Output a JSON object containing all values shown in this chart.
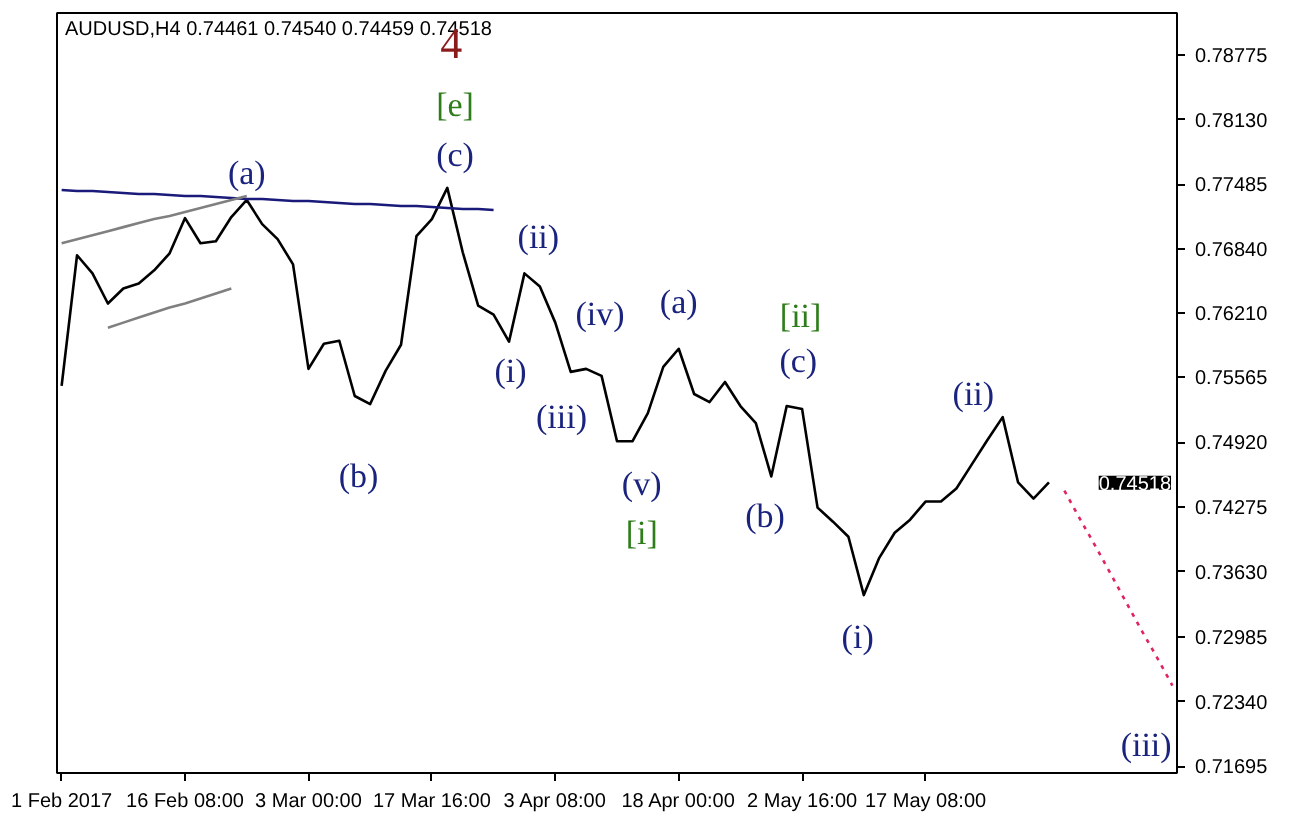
{
  "chart_data": {
    "type": "line",
    "title": "AUDUSD,H4  0.74461 0.74540 0.74459 0.74518",
    "categories": [
      "1 Feb 2017",
      null,
      null,
      null,
      null,
      null,
      null,
      null,
      "16 Feb 08:00",
      null,
      null,
      null,
      null,
      null,
      null,
      null,
      "3 Mar 00:00",
      null,
      null,
      null,
      null,
      null,
      null,
      null,
      "17 Mar 16:00",
      null,
      null,
      null,
      null,
      null,
      null,
      null,
      "3 Apr 08:00",
      null,
      null,
      null,
      null,
      null,
      null,
      null,
      "18 Apr 00:00",
      null,
      null,
      null,
      null,
      null,
      null,
      null,
      "2 May 16:00",
      null,
      null,
      null,
      null,
      null,
      null,
      null,
      "17 May 08:00",
      null,
      null,
      null,
      null,
      null,
      null,
      null,
      null,
      null,
      null,
      null,
      null,
      null,
      null,
      null,
      null
    ],
    "series": [
      {
        "color": "#000000",
        "line_style": "solid",
        "values": [
          0.7548,
          0.7678,
          0.766,
          0.763,
          0.7645,
          0.765,
          0.7663,
          0.768,
          0.7715,
          0.769,
          0.7692,
          0.7716,
          0.7733,
          0.7709,
          0.7694,
          0.7669,
          0.7565,
          0.759,
          0.7593,
          0.7538,
          0.753,
          0.7563,
          0.7589,
          0.7697,
          0.7714,
          0.7745,
          0.7681,
          0.7628,
          0.7619,
          0.7592,
          0.766,
          0.7647,
          0.7611,
          0.7562,
          0.7565,
          0.7558,
          0.7493,
          0.7493,
          0.7521,
          0.7567,
          0.7585,
          0.754,
          0.7532,
          0.7552,
          0.7528,
          0.7511,
          0.7458,
          0.7528,
          0.7525,
          0.7427,
          0.7413,
          0.7398,
          0.734,
          0.7377,
          0.7402,
          0.7415,
          0.7433,
          0.7433,
          0.7446,
          0.747,
          0.7494,
          0.7517,
          0.7452,
          0.7436,
          0.7452,
          null,
          null,
          null,
          null,
          null,
          null,
          null,
          null
        ]
      },
      {
        "color": "#1a1a7a",
        "line_style": "solid",
        "values": [
          0.7743,
          0.7742,
          0.7742,
          0.7741,
          0.774,
          0.7739,
          0.7739,
          0.7738,
          0.7737,
          0.7737,
          0.7736,
          0.7735,
          0.7734,
          0.7734,
          0.7733,
          0.7732,
          0.7732,
          0.7731,
          0.773,
          0.7729,
          0.7729,
          0.7728,
          0.7727,
          0.7727,
          0.7726,
          0.7725,
          0.7724,
          0.7724,
          0.7723,
          null,
          null,
          null,
          null,
          null,
          null,
          null,
          null,
          null,
          null,
          null,
          null,
          null,
          null,
          null,
          null,
          null,
          null,
          null,
          null,
          null,
          null,
          null,
          null,
          null,
          null,
          null,
          null,
          null,
          null,
          null,
          null,
          null,
          null,
          null,
          null,
          null,
          null,
          null,
          null,
          null,
          null,
          null,
          null
        ]
      },
      {
        "color": "#808080",
        "line_style": "solid",
        "values": [
          0.769,
          0.7694,
          0.7698,
          0.7702,
          0.7706,
          0.771,
          0.7714,
          0.7717,
          0.7721,
          0.7725,
          0.7729,
          0.7733,
          0.7737,
          null,
          null,
          null,
          null,
          null,
          null,
          null,
          null,
          null,
          null,
          null,
          null,
          null,
          null,
          null,
          null,
          null,
          null,
          null,
          null,
          null,
          null,
          null,
          null,
          null,
          null,
          null,
          null,
          null,
          null,
          null,
          null,
          null,
          null,
          null,
          null,
          null,
          null,
          null,
          null,
          null,
          null,
          null,
          null,
          null,
          null,
          null,
          null,
          null,
          null,
          null,
          null,
          null,
          null,
          null,
          null,
          null,
          null,
          null,
          null
        ]
      },
      {
        "color": "#808080",
        "line_style": "solid",
        "values": [
          null,
          null,
          null,
          0.7606,
          0.7611,
          0.7616,
          0.7621,
          0.7626,
          0.763,
          0.7635,
          0.764,
          0.7645,
          null,
          null,
          null,
          null,
          null,
          null,
          null,
          null,
          null,
          null,
          null,
          null,
          null,
          null,
          null,
          null,
          null,
          null,
          null,
          null,
          null,
          null,
          null,
          null,
          null,
          null,
          null,
          null,
          null,
          null,
          null,
          null,
          null,
          null,
          null,
          null,
          null,
          null,
          null,
          null,
          null,
          null,
          null,
          null,
          null,
          null,
          null,
          null,
          null,
          null,
          null,
          null,
          null,
          null,
          null,
          null,
          null,
          null,
          null,
          null,
          null
        ]
      },
      {
        "color": "#e0245e",
        "line_style": "dotted",
        "values": [
          null,
          null,
          null,
          null,
          null,
          null,
          null,
          null,
          null,
          null,
          null,
          null,
          null,
          null,
          null,
          null,
          null,
          null,
          null,
          null,
          null,
          null,
          null,
          null,
          null,
          null,
          null,
          null,
          null,
          null,
          null,
          null,
          null,
          null,
          null,
          null,
          null,
          null,
          null,
          null,
          null,
          null,
          null,
          null,
          null,
          null,
          null,
          null,
          null,
          null,
          null,
          null,
          null,
          null,
          null,
          null,
          null,
          null,
          null,
          null,
          null,
          null,
          null,
          null,
          null,
          0.7444,
          0.7416,
          0.7389,
          0.7361,
          0.7333,
          0.7305,
          0.7278,
          0.725
        ]
      }
    ],
    "ylim": [
      0.7163,
      0.7919
    ],
    "yticks": [
      {
        "value": 0.78775,
        "label": "0.78775"
      },
      {
        "value": 0.7813,
        "label": "0.78130"
      },
      {
        "value": 0.77485,
        "label": "0.77485"
      },
      {
        "value": 0.7684,
        "label": "0.76840"
      },
      {
        "value": 0.7621,
        "label": "0.76210"
      },
      {
        "value": 0.75565,
        "label": "0.75565"
      },
      {
        "value": 0.7492,
        "label": "0.74920"
      },
      {
        "value": 0.74275,
        "label": "0.74275"
      },
      {
        "value": 0.7363,
        "label": "0.73630"
      },
      {
        "value": 0.72985,
        "label": "0.72985"
      },
      {
        "value": 0.7234,
        "label": "0.72340"
      },
      {
        "value": 0.71695,
        "label": "0.71695"
      }
    ],
    "grid": false,
    "annotations": [
      "4",
      "[e]",
      "(c)",
      "(a)",
      "(ii)",
      "(iv)",
      "(a)",
      "[ii]",
      "(c)",
      "(i)",
      "(iii)",
      "(b)",
      "(v)",
      "[i]",
      "(b)",
      "(ii)",
      "(i)",
      "(iii)",
      "0.74518"
    ]
  }
}
